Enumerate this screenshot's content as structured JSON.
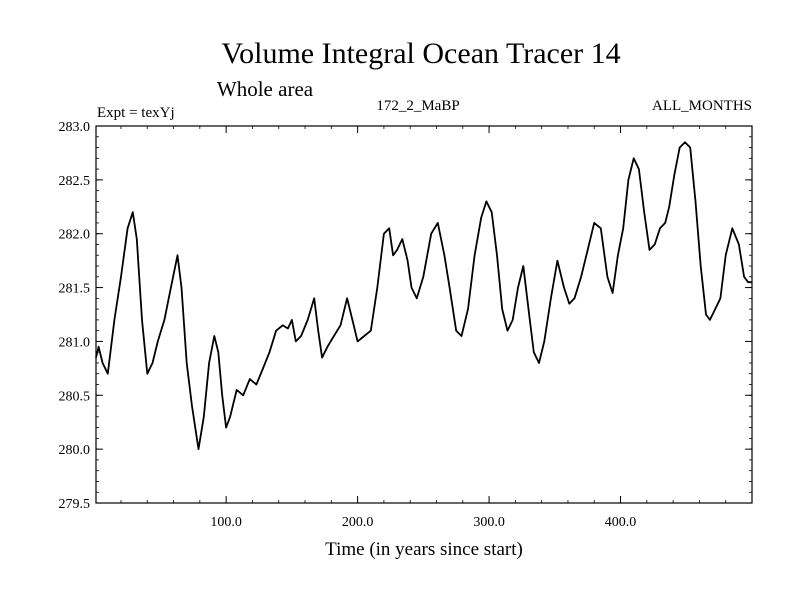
{
  "chart_data": {
    "type": "line",
    "title": "Volume Integral Ocean Tracer 14",
    "subtitle": "Whole area",
    "annotations": {
      "left": "Expt = texYj",
      "center": "172_2_MaBP",
      "right": "ALL_MONTHS"
    },
    "xlabel": "Time (in years since start)",
    "ylabel": "",
    "xlim": [
      1,
      500
    ],
    "ylim": [
      279.5,
      283.0
    ],
    "x_ticks": [
      100,
      200,
      300,
      400
    ],
    "x_tick_labels": [
      "100.0",
      "200.0",
      "300.0",
      "400.0"
    ],
    "y_ticks": [
      279.5,
      280.0,
      280.5,
      281.0,
      281.5,
      282.0,
      282.5,
      283.0
    ],
    "y_tick_labels": [
      "279.5",
      "280.0",
      "280.5",
      "281.0",
      "281.5",
      "282.0",
      "282.5",
      "283.0"
    ],
    "grid": false,
    "series": [
      {
        "color": "#000000",
        "x": [
          1,
          3,
          6,
          10,
          15,
          20,
          25,
          29,
          32,
          36,
          40,
          44,
          48,
          53,
          58,
          63,
          66,
          70,
          74,
          79,
          83,
          87,
          91,
          94,
          97,
          100,
          103,
          108,
          113,
          118,
          123,
          128,
          133,
          138,
          143,
          147,
          150,
          153,
          157,
          162,
          167,
          170,
          173,
          177,
          182,
          187,
          192,
          196,
          200,
          205,
          210,
          215,
          220,
          224,
          227,
          230,
          234,
          238,
          241,
          245,
          250,
          256,
          261,
          266,
          270,
          275,
          279,
          284,
          289,
          294,
          298,
          302,
          306,
          310,
          314,
          318,
          322,
          326,
          331,
          334,
          338,
          342,
          347,
          352,
          357,
          361,
          365,
          370,
          375,
          380,
          385,
          390,
          394,
          398,
          402,
          406,
          410,
          414,
          418,
          422,
          426,
          430,
          434,
          437,
          441,
          445,
          449,
          453,
          457,
          461,
          465,
          468,
          472,
          476,
          480,
          485,
          490,
          494,
          497,
          500
        ],
        "y": [
          280.85,
          280.95,
          280.8,
          280.7,
          281.2,
          281.6,
          282.05,
          282.2,
          281.95,
          281.2,
          280.7,
          280.8,
          281.0,
          281.2,
          281.5,
          281.8,
          281.5,
          280.8,
          280.4,
          280.0,
          280.3,
          280.8,
          281.05,
          280.9,
          280.5,
          280.2,
          280.3,
          280.55,
          280.5,
          280.65,
          280.6,
          280.75,
          280.9,
          281.1,
          281.15,
          281.12,
          281.2,
          281.0,
          281.05,
          281.2,
          281.4,
          281.1,
          280.85,
          280.95,
          281.05,
          281.15,
          281.4,
          281.2,
          281.0,
          281.05,
          281.1,
          281.5,
          282.0,
          282.05,
          281.8,
          281.85,
          281.95,
          281.75,
          281.5,
          281.4,
          281.6,
          282.0,
          282.1,
          281.8,
          281.5,
          281.1,
          281.05,
          281.3,
          281.8,
          282.15,
          282.3,
          282.2,
          281.8,
          281.3,
          281.1,
          281.2,
          281.5,
          281.7,
          281.2,
          280.9,
          280.8,
          281.0,
          281.4,
          281.75,
          281.5,
          281.35,
          281.4,
          281.6,
          281.85,
          282.1,
          282.05,
          281.6,
          281.45,
          281.8,
          282.05,
          282.5,
          282.7,
          282.6,
          282.2,
          281.85,
          281.9,
          282.05,
          282.1,
          282.25,
          282.55,
          282.8,
          282.85,
          282.8,
          282.3,
          281.7,
          281.25,
          281.2,
          281.3,
          281.4,
          281.8,
          282.05,
          281.9,
          281.6,
          281.55,
          281.55
        ]
      }
    ]
  }
}
